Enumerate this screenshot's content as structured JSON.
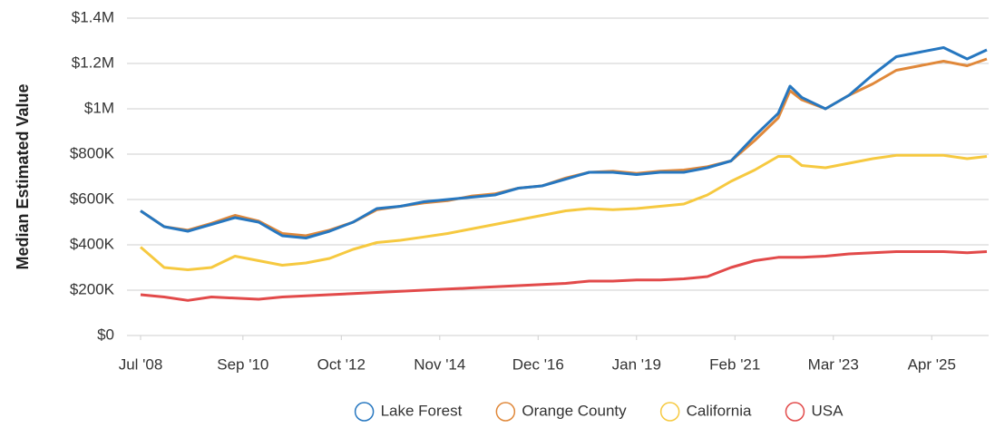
{
  "chart_data": {
    "type": "line",
    "y_label": "Median Estimated Value",
    "x": [
      "2008-07",
      "2009-01",
      "2009-07",
      "2010-01",
      "2010-07",
      "2011-01",
      "2011-07",
      "2012-01",
      "2012-07",
      "2013-01",
      "2013-07",
      "2014-01",
      "2014-07",
      "2015-01",
      "2015-07",
      "2016-01",
      "2016-07",
      "2017-01",
      "2017-07",
      "2018-01",
      "2018-07",
      "2019-01",
      "2019-07",
      "2020-01",
      "2020-07",
      "2021-01",
      "2021-07",
      "2022-01",
      "2022-04",
      "2022-07",
      "2023-01",
      "2023-07",
      "2024-01",
      "2024-07",
      "2025-01",
      "2025-07",
      "2026-01",
      "2026-06"
    ],
    "xlim": [
      "2008-07",
      "2026-06"
    ],
    "xticks": [
      {
        "value": "2008-07",
        "label": "Jul '08"
      },
      {
        "value": "2010-09",
        "label": "Sep '10"
      },
      {
        "value": "2012-10",
        "label": "Oct '12"
      },
      {
        "value": "2014-11",
        "label": "Nov '14"
      },
      {
        "value": "2016-12",
        "label": "Dec '16"
      },
      {
        "value": "2019-01",
        "label": "Jan '19"
      },
      {
        "value": "2021-02",
        "label": "Feb '21"
      },
      {
        "value": "2023-03",
        "label": "Mar '23"
      },
      {
        "value": "2025-04",
        "label": "Apr '25"
      }
    ],
    "ylim": [
      0,
      1400000
    ],
    "yticks": [
      {
        "value": 0,
        "label": "$0"
      },
      {
        "value": 200000,
        "label": "$200K"
      },
      {
        "value": 400000,
        "label": "$400K"
      },
      {
        "value": 600000,
        "label": "$600K"
      },
      {
        "value": 800000,
        "label": "$800K"
      },
      {
        "value": 1000000,
        "label": "$1M"
      },
      {
        "value": 1200000,
        "label": "$1.2M"
      },
      {
        "value": 1400000,
        "label": "$1.4M"
      }
    ],
    "grid": true,
    "legend": "bottom",
    "series": [
      {
        "name": "Lake Forest",
        "color": "#2677c0",
        "values": [
          550000,
          480000,
          460000,
          490000,
          520000,
          500000,
          440000,
          430000,
          460000,
          500000,
          560000,
          570000,
          590000,
          600000,
          610000,
          620000,
          650000,
          660000,
          690000,
          720000,
          720000,
          710000,
          720000,
          720000,
          740000,
          770000,
          880000,
          980000,
          1100000,
          1050000,
          1000000,
          1060000,
          1150000,
          1230000,
          1250000,
          1270000,
          1220000,
          1260000
        ]
      },
      {
        "name": "Orange County",
        "color": "#e0883a",
        "values": [
          550000,
          480000,
          465000,
          495000,
          530000,
          505000,
          450000,
          440000,
          465000,
          500000,
          555000,
          570000,
          585000,
          595000,
          615000,
          625000,
          650000,
          660000,
          695000,
          720000,
          725000,
          715000,
          725000,
          730000,
          745000,
          770000,
          860000,
          960000,
          1080000,
          1040000,
          1000000,
          1060000,
          1110000,
          1170000,
          1190000,
          1210000,
          1190000,
          1220000
        ]
      },
      {
        "name": "California",
        "color": "#f6c940",
        "values": [
          390000,
          300000,
          290000,
          300000,
          350000,
          330000,
          310000,
          320000,
          340000,
          380000,
          410000,
          420000,
          435000,
          450000,
          470000,
          490000,
          510000,
          530000,
          550000,
          560000,
          555000,
          560000,
          570000,
          580000,
          620000,
          680000,
          730000,
          790000,
          790000,
          750000,
          740000,
          760000,
          780000,
          795000,
          795000,
          795000,
          780000,
          790000
        ]
      },
      {
        "name": "USA",
        "color": "#e24a4a",
        "values": [
          180000,
          170000,
          155000,
          170000,
          165000,
          160000,
          170000,
          175000,
          180000,
          185000,
          190000,
          195000,
          200000,
          205000,
          210000,
          215000,
          220000,
          225000,
          230000,
          240000,
          240000,
          245000,
          245000,
          250000,
          260000,
          300000,
          330000,
          345000,
          345000,
          345000,
          350000,
          360000,
          365000,
          370000,
          370000,
          370000,
          365000,
          370000
        ]
      }
    ]
  }
}
